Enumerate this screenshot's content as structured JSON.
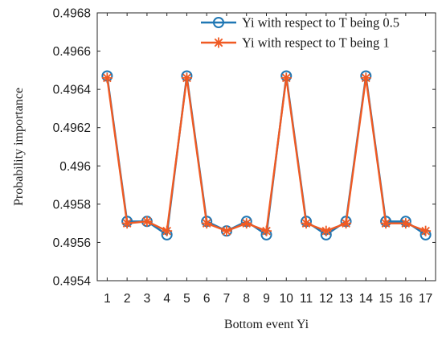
{
  "chart_data": {
    "type": "line",
    "xlabel": "Bottom event Yi",
    "ylabel": "Probability importance",
    "x": [
      1,
      2,
      3,
      4,
      5,
      6,
      7,
      8,
      9,
      10,
      11,
      12,
      13,
      14,
      15,
      16,
      17
    ],
    "xlim": [
      0.5,
      17.5
    ],
    "ylim": [
      0.4954,
      0.4968
    ],
    "yticks": [
      "0.4954",
      "0.4956",
      "0.4958",
      "0.496",
      "0.4962",
      "0.4964",
      "0.4966",
      "0.4968"
    ],
    "grid": false,
    "legend_position": "top-right",
    "series": [
      {
        "name": "Yi with respect to T being 0.5",
        "marker": "circle",
        "color": "#1f77b4",
        "values": [
          0.49647,
          0.49571,
          0.49571,
          0.49564,
          0.49647,
          0.49571,
          0.49566,
          0.49571,
          0.49564,
          0.49647,
          0.49571,
          0.49564,
          0.49571,
          0.49647,
          0.49571,
          0.49571,
          0.49564
        ]
      },
      {
        "name": "Yi with respect to T being 1",
        "marker": "asterisk",
        "color": "#f05a23",
        "values": [
          0.49646,
          0.4957,
          0.49571,
          0.49566,
          0.49646,
          0.4957,
          0.49566,
          0.4957,
          0.49566,
          0.49646,
          0.4957,
          0.49566,
          0.4957,
          0.49646,
          0.4957,
          0.4957,
          0.49566
        ]
      }
    ]
  }
}
